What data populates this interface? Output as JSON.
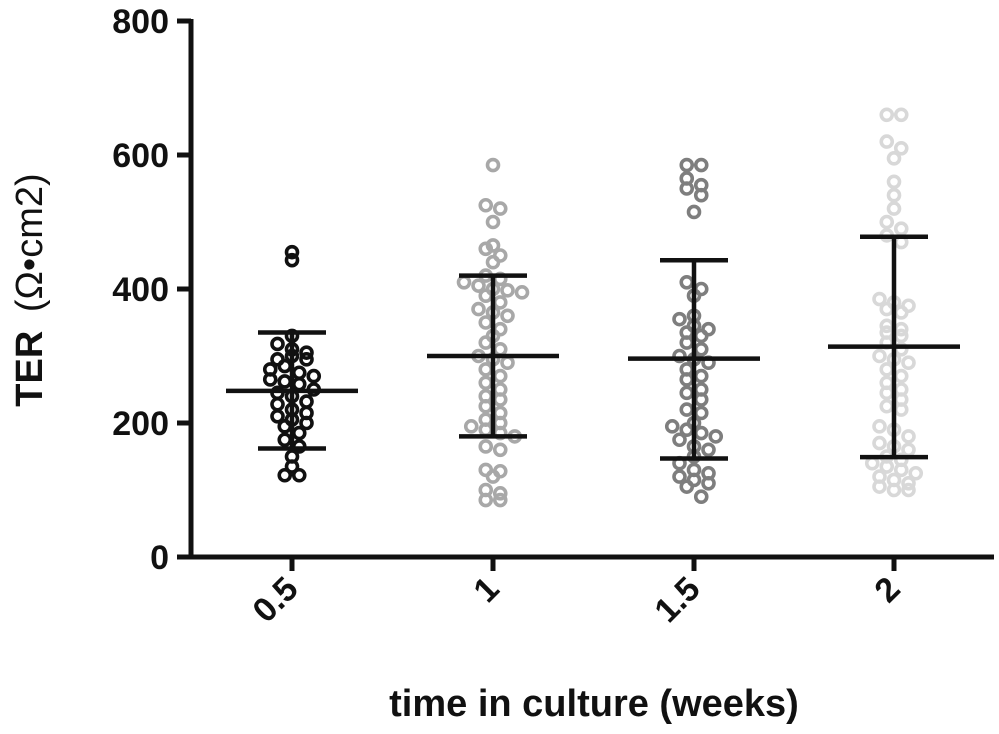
{
  "chart_data": {
    "type": "scatter",
    "subtype": "dot-plot-with-mean-and-sd",
    "title": "",
    "xlabel": "time in culture (weeks)",
    "ylabel_main": "TER",
    "ylabel_unit": "(Ω•cm2)",
    "ylim": [
      0,
      800
    ],
    "yticks": [
      "0",
      "200",
      "400",
      "600",
      "800"
    ],
    "categories": [
      "0.5",
      "1",
      "1.5",
      "2"
    ],
    "series": [
      {
        "name": "0.5",
        "color": "#111111",
        "mean": 248,
        "sd_low": 162,
        "sd_high": 335,
        "values": [
          455,
          443,
          295,
          280,
          330,
          318,
          310,
          305,
          300,
          295,
          285,
          275,
          270,
          265,
          262,
          258,
          250,
          245,
          240,
          232,
          228,
          220,
          215,
          210,
          205,
          200,
          195,
          185,
          175,
          165,
          150,
          135,
          122,
          122
        ]
      },
      {
        "name": "1",
        "color": "#a8a8a8",
        "mean": 300,
        "sd_low": 180,
        "sd_high": 420,
        "values": [
          585,
          525,
          520,
          500,
          465,
          460,
          450,
          440,
          420,
          415,
          410,
          405,
          400,
          398,
          395,
          390,
          380,
          370,
          365,
          360,
          350,
          340,
          330,
          320,
          310,
          300,
          295,
          290,
          280,
          270,
          260,
          250,
          240,
          235,
          225,
          215,
          205,
          200,
          195,
          190,
          185,
          180,
          165,
          160,
          130,
          128,
          120,
          100,
          95,
          85,
          85
        ]
      },
      {
        "name": "1.5",
        "color": "#7e7e7e",
        "mean": 296,
        "sd_low": 147,
        "sd_high": 443,
        "values": [
          585,
          585,
          565,
          555,
          550,
          540,
          515,
          410,
          400,
          390,
          360,
          355,
          345,
          340,
          335,
          330,
          320,
          310,
          300,
          295,
          290,
          280,
          270,
          265,
          250,
          245,
          235,
          220,
          215,
          200,
          195,
          190,
          185,
          180,
          175,
          165,
          160,
          150,
          140,
          130,
          125,
          120,
          115,
          110,
          105,
          90
        ]
      },
      {
        "name": "2",
        "color": "#d8d8d8",
        "mean": 314,
        "sd_low": 149,
        "sd_high": 478,
        "values": [
          660,
          660,
          620,
          610,
          595,
          560,
          540,
          520,
          500,
          490,
          480,
          470,
          385,
          380,
          375,
          370,
          365,
          345,
          340,
          335,
          330,
          320,
          310,
          300,
          295,
          290,
          280,
          270,
          260,
          250,
          245,
          235,
          225,
          220,
          195,
          190,
          180,
          170,
          165,
          160,
          150,
          145,
          140,
          135,
          130,
          125,
          120,
          115,
          110,
          105,
          100,
          100
        ]
      }
    ]
  }
}
